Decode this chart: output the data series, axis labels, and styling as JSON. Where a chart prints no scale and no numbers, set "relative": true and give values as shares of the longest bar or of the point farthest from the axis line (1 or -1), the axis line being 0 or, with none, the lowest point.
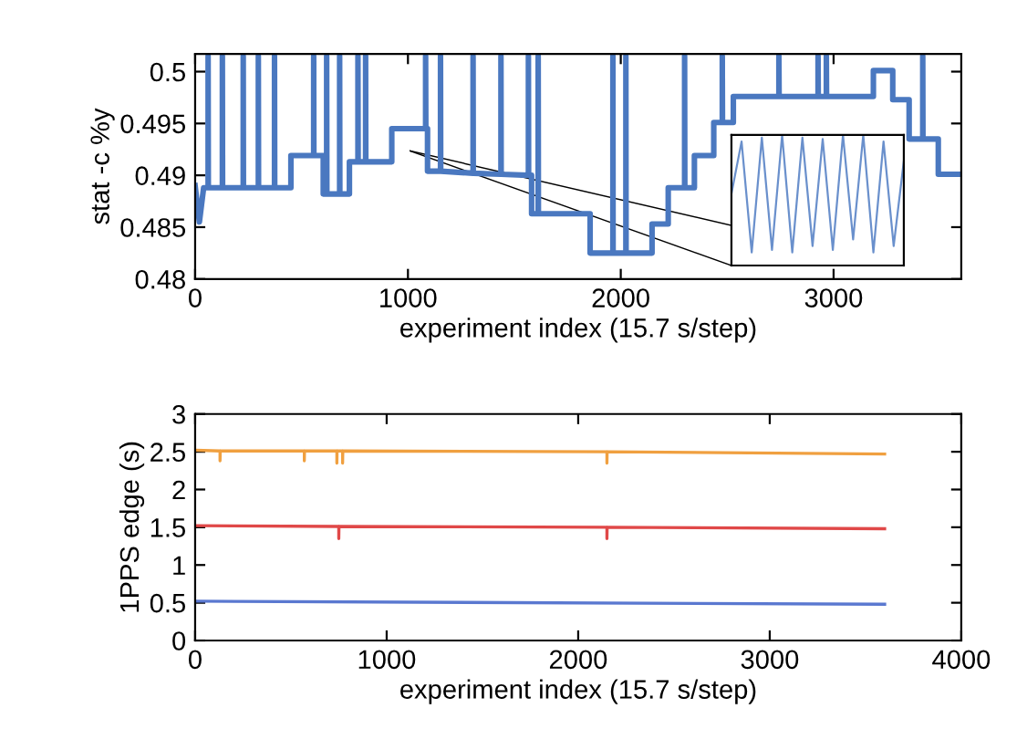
{
  "chart_data": [
    {
      "type": "line",
      "xlabel": "experiment index (15.7 s/step)",
      "ylabel": "stat -c %y",
      "xlim": [
        0,
        3600
      ],
      "xticks": [
        0,
        1000,
        2000,
        3000
      ],
      "ylim": [
        0.48,
        0.5017
      ],
      "yticks": [
        0.48,
        0.485,
        0.49,
        0.495,
        0.5
      ],
      "grid": false,
      "marker": "none",
      "line_style": "solid",
      "series": [
        {
          "color": "#4a78c0",
          "x": [
            0,
            20,
            40,
            61,
            61,
            62,
            128,
            128,
            129,
            226,
            226,
            227,
            297,
            297,
            298,
            373,
            373,
            374,
            450,
            450,
            557,
            557,
            558,
            602,
            602,
            618,
            618,
            619,
            679,
            679,
            680,
            725,
            725,
            765,
            765,
            766,
            801,
            801,
            802,
            924,
            924,
            1083,
            1083,
            1084,
            1092,
            1092,
            1153,
            1153,
            1154,
            1306,
            1306,
            1307,
            1437,
            1437,
            1438,
            1566,
            1566,
            1567,
            1581,
            1581,
            1612,
            1612,
            1613,
            1856,
            1856,
            1963,
            1963,
            1964,
            2024,
            2024,
            2025,
            2147,
            2147,
            2223,
            2223,
            2300,
            2300,
            2301,
            2346,
            2346,
            2437,
            2437,
            2477,
            2477,
            2478,
            2529,
            2529,
            2743,
            2743,
            2744,
            2927,
            2927,
            2928,
            2966,
            2966,
            2967,
            3187,
            3187,
            3278,
            3278,
            3355,
            3355,
            3419,
            3419,
            3420,
            3492,
            3492,
            3600
          ],
          "values": [
            0.489,
            0.4855,
            0.4888,
            0.4888,
            0.5015,
            0.4888,
            0.4888,
            0.5015,
            0.4888,
            0.4888,
            0.5015,
            0.4888,
            0.4888,
            0.5015,
            0.4888,
            0.4888,
            0.5015,
            0.4888,
            0.4888,
            0.4919,
            0.4919,
            0.5015,
            0.4919,
            0.4919,
            0.4882,
            0.4882,
            0.5015,
            0.4882,
            0.4882,
            0.5015,
            0.4882,
            0.4882,
            0.4913,
            0.4913,
            0.5015,
            0.4913,
            0.4913,
            0.5015,
            0.4913,
            0.4913,
            0.4945,
            0.4945,
            0.5015,
            0.4945,
            0.4945,
            0.4904,
            0.4904,
            0.5015,
            0.4904,
            0.4902,
            0.5015,
            0.4902,
            0.4901,
            0.5015,
            0.4901,
            0.49,
            0.5015,
            0.49,
            0.49,
            0.4863,
            0.4863,
            0.5015,
            0.4863,
            0.4863,
            0.4825,
            0.4825,
            0.5015,
            0.4825,
            0.4825,
            0.5015,
            0.4825,
            0.4825,
            0.4853,
            0.4853,
            0.4888,
            0.4888,
            0.5015,
            0.4888,
            0.4888,
            0.4919,
            0.4919,
            0.4951,
            0.4951,
            0.5015,
            0.4951,
            0.4951,
            0.4976,
            0.4976,
            0.5015,
            0.4976,
            0.4976,
            0.5015,
            0.4976,
            0.4976,
            0.5015,
            0.4976,
            0.4976,
            0.5001,
            0.5001,
            0.4973,
            0.4973,
            0.4935,
            0.4935,
            0.5015,
            0.4935,
            0.4935,
            0.4901,
            0.4901
          ]
        }
      ]
    },
    {
      "type": "line",
      "relative": true,
      "categories": [
        null,
        null,
        null,
        null,
        null,
        null,
        null,
        null,
        null,
        null,
        null,
        null,
        null,
        null,
        null,
        null,
        null,
        null
      ],
      "tick_labels": false,
      "grid": false,
      "marker": "none",
      "line_style": "solid",
      "series": [
        {
          "color": "#6a90cc",
          "values": [
            0.55,
            0.95,
            0.1,
            0.98,
            0.12,
            1,
            0.1,
            0.98,
            0.15,
            0.97,
            0.12,
            1,
            0.2,
            1,
            0.1,
            0.95,
            0.15,
            0.8
          ]
        }
      ]
    },
    {
      "type": "line",
      "xlabel": "experiment index (15.7 s/step)",
      "ylabel": "1PPS edge (s)",
      "xlim": [
        0,
        4000
      ],
      "xticks": [
        0,
        1000,
        2000,
        3000,
        4000
      ],
      "ylim": [
        0,
        3
      ],
      "yticks": [
        0,
        0.5,
        1,
        1.5,
        2,
        2.5,
        3
      ],
      "grid": false,
      "marker": "none",
      "line_style": "solid",
      "series": [
        {
          "color": "#f0a040",
          "x": [
            0,
            130,
            130,
            131,
            570,
            570,
            571,
            740,
            740,
            741,
            770,
            770,
            771,
            2150,
            2150,
            2151,
            3600
          ],
          "values": [
            2.52,
            2.51,
            2.38,
            2.51,
            2.51,
            2.38,
            2.51,
            2.51,
            2.35,
            2.51,
            2.51,
            2.35,
            2.51,
            2.5,
            2.35,
            2.5,
            2.47
          ]
        },
        {
          "color": "#e04848",
          "x": [
            0,
            750,
            750,
            751,
            2150,
            2150,
            2151,
            3600
          ],
          "values": [
            1.52,
            1.51,
            1.35,
            1.51,
            1.5,
            1.35,
            1.5,
            1.48
          ]
        },
        {
          "color": "#5a78d0",
          "x": [
            0,
            3600
          ],
          "values": [
            0.52,
            0.48
          ]
        }
      ]
    }
  ]
}
